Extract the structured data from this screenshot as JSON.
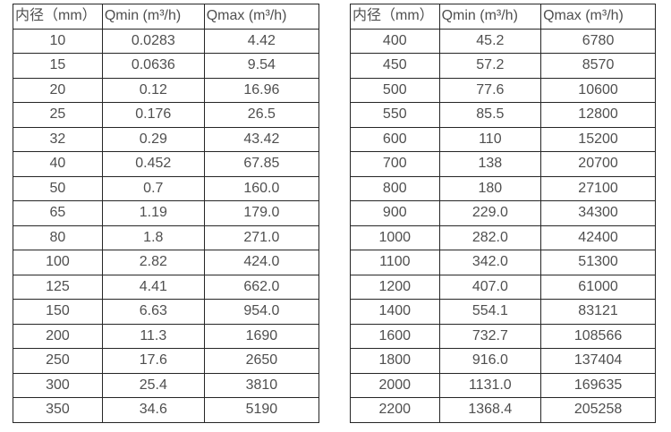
{
  "page": {
    "background_color": "#ffffff",
    "border_color": "#262626",
    "text_color": "#4f4f4f"
  },
  "tables": [
    {
      "id": "left",
      "headers": [
        "内径（mm）",
        "Qmin (m³/h)",
        "Qmax (m³/h)"
      ],
      "rows": [
        [
          "10",
          "0.0283",
          "4.42"
        ],
        [
          "15",
          "0.0636",
          "9.54"
        ],
        [
          "20",
          "0.12",
          "16.96"
        ],
        [
          "25",
          "0.176",
          "26.5"
        ],
        [
          "32",
          "0.29",
          "43.42"
        ],
        [
          "40",
          "0.452",
          "67.85"
        ],
        [
          "50",
          "0.7",
          "160.0"
        ],
        [
          "65",
          "1.19",
          "179.0"
        ],
        [
          "80",
          "1.8",
          "271.0"
        ],
        [
          "100",
          "2.82",
          "424.0"
        ],
        [
          "125",
          "4.41",
          "662.0"
        ],
        [
          "150",
          "6.63",
          "954.0"
        ],
        [
          "200",
          "11.3",
          "1690"
        ],
        [
          "250",
          "17.6",
          "2650"
        ],
        [
          "300",
          "25.4",
          "3810"
        ],
        [
          "350",
          "34.6",
          "5190"
        ]
      ]
    },
    {
      "id": "right",
      "headers": [
        "内径（mm）",
        "Qmin (m³/h)",
        "Qmax (m³/h)"
      ],
      "rows": [
        [
          "400",
          "45.2",
          "6780"
        ],
        [
          "450",
          "57.2",
          "8570"
        ],
        [
          "500",
          "77.6",
          "10600"
        ],
        [
          "550",
          "85.5",
          "12800"
        ],
        [
          "600",
          "110",
          "15200"
        ],
        [
          "700",
          "138",
          "20700"
        ],
        [
          "800",
          "180",
          "27100"
        ],
        [
          "900",
          "229.0",
          "34300"
        ],
        [
          "1000",
          "282.0",
          "42400"
        ],
        [
          "1100",
          "342.0",
          "51300"
        ],
        [
          "1200",
          "407.0",
          "61000"
        ],
        [
          "1400",
          "554.1",
          "83121"
        ],
        [
          "1600",
          "732.7",
          "108566"
        ],
        [
          "1800",
          "916.0",
          "137404"
        ],
        [
          "2000",
          "1131.0",
          "169635"
        ],
        [
          "2200",
          "1368.4",
          "205258"
        ]
      ]
    }
  ]
}
